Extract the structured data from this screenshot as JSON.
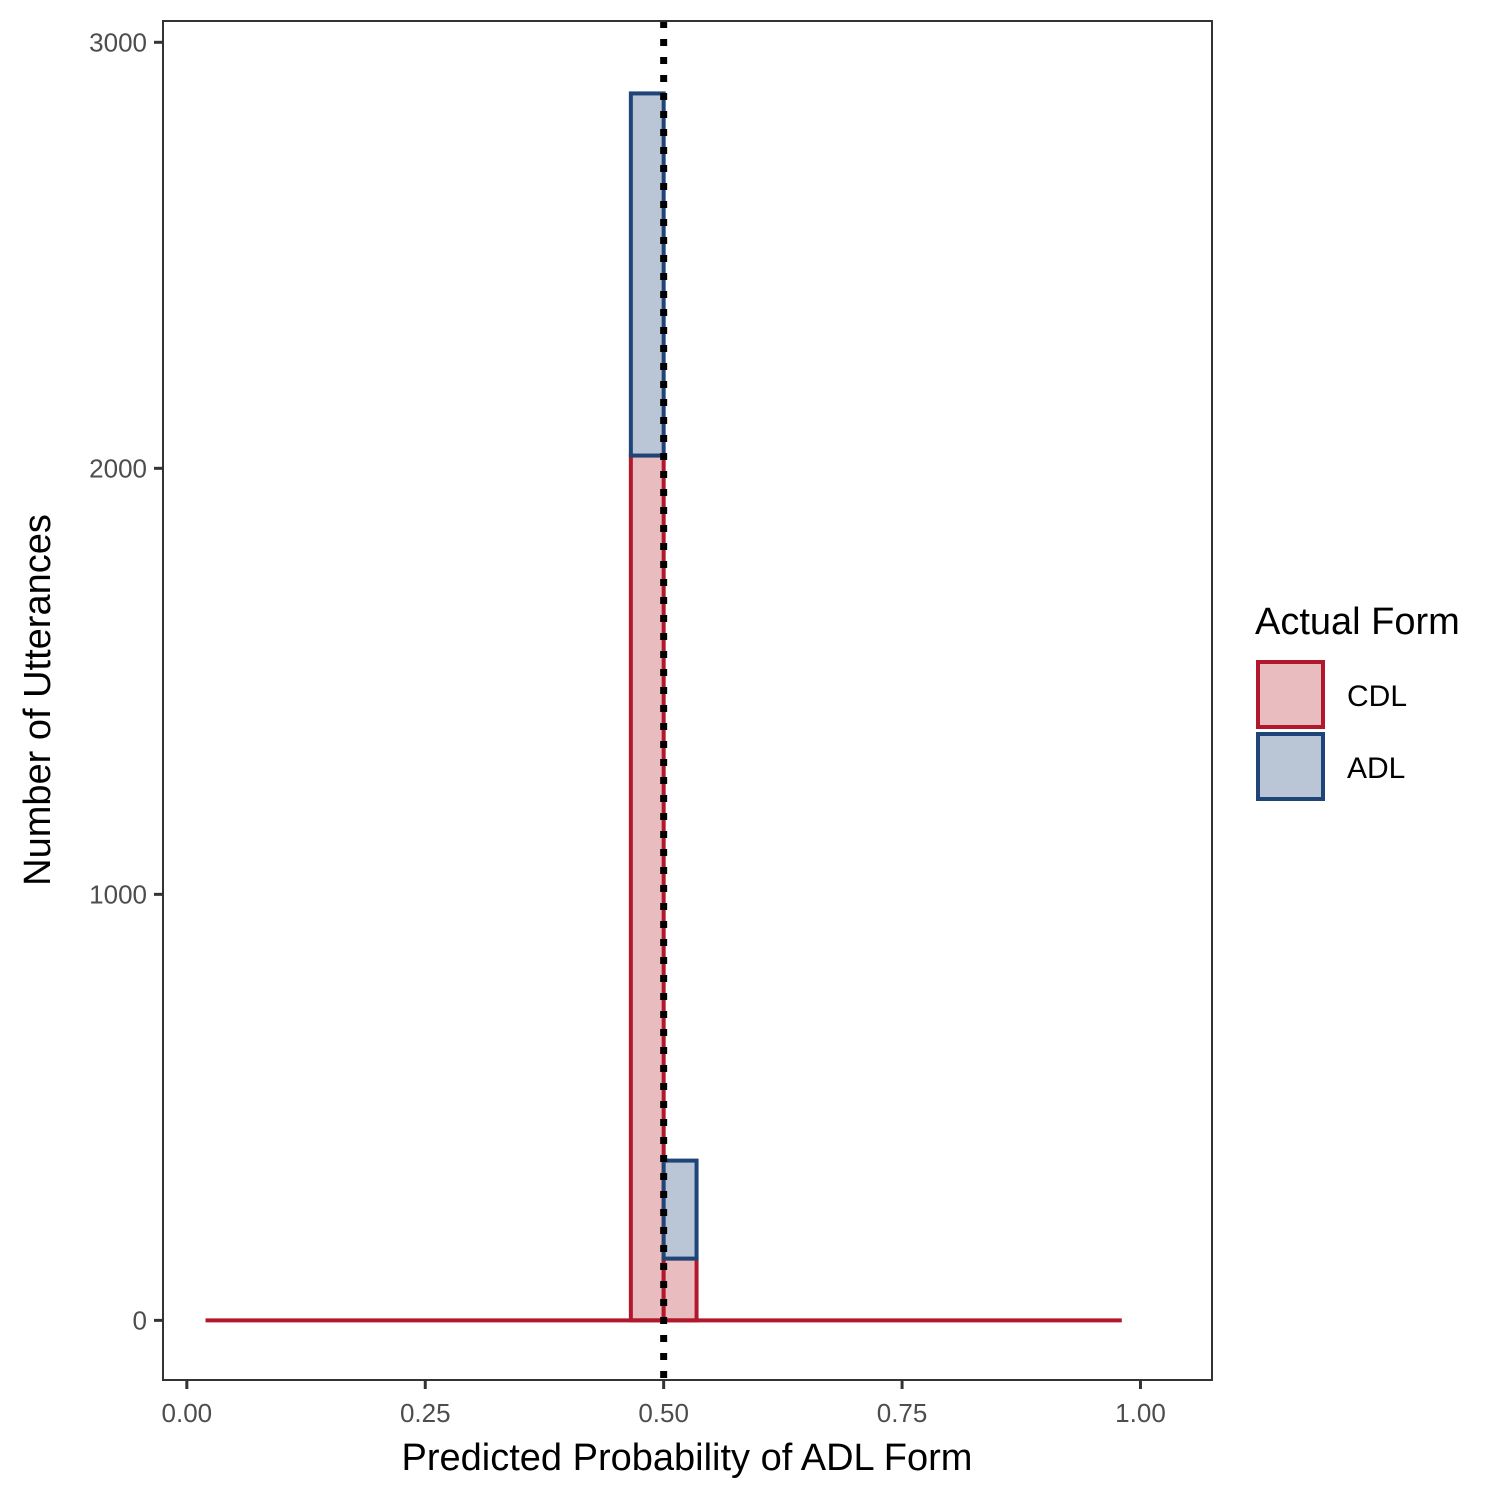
{
  "chart_data": {
    "type": "bar",
    "xlabel": "Predicted Probability of ADL Form",
    "ylabel": "Number of Utterances",
    "xlim": [
      -0.025,
      1.075
    ],
    "ylim": [
      -140,
      3050
    ],
    "x_ticks": [
      0.0,
      0.25,
      0.5,
      0.75,
      1.0
    ],
    "x_tick_labels": [
      "0.00",
      "0.25",
      "0.50",
      "0.75",
      "1.00"
    ],
    "y_ticks": [
      0,
      1000,
      2000,
      3000
    ],
    "y_tick_labels": [
      "0",
      "1000",
      "2000",
      "3000"
    ],
    "grid": false,
    "legend": {
      "title": "Actual Form",
      "position": "right"
    },
    "stacked": true,
    "bin_range": [
      0.0196,
      0.9804
    ],
    "bin_width": 0.0345,
    "bins": [
      {
        "xmin": 0.4656,
        "xmax": 0.5,
        "counts": {
          "CDL": 2030,
          "ADL": 850
        }
      },
      {
        "xmin": 0.5,
        "xmax": 0.5345,
        "counts": {
          "CDL": 145,
          "ADL": 230
        }
      }
    ],
    "series": [
      {
        "name": "CDL",
        "fill": "#e9bcc0",
        "stroke": "#b2182b"
      },
      {
        "name": "ADL",
        "fill": "#bac6d6",
        "stroke": "#1f4477"
      }
    ],
    "reference_line": {
      "x": 0.5,
      "style": "dotted",
      "color": "#000000"
    }
  }
}
